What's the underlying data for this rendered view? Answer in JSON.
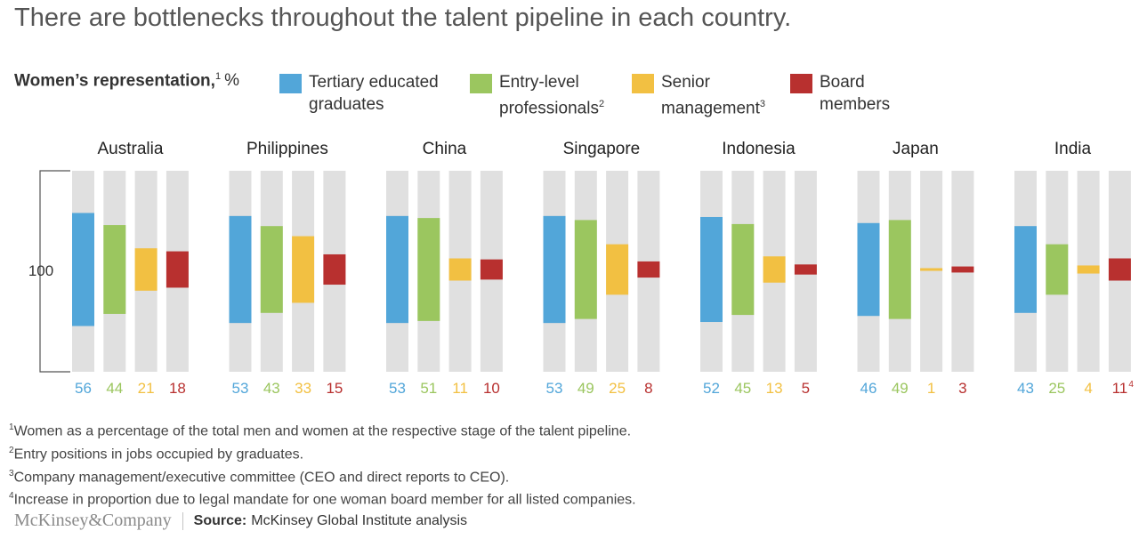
{
  "title": "There are bottlenecks throughout the talent pipeline in each country.",
  "rep_label": {
    "text": "Women’s representation,",
    "sup": "1",
    "unit": "%"
  },
  "legend": [
    {
      "line1": "Tertiary educated",
      "line2": "graduates",
      "sup": "",
      "color": "#52a6d9"
    },
    {
      "line1": "Entry-level",
      "line2": "professionals",
      "sup": "2",
      "color": "#9bc65f"
    },
    {
      "line1": "Senior",
      "line2": "management",
      "sup": "3",
      "color": "#f2c042"
    },
    {
      "line1": "Board",
      "line2": "members",
      "sup": "",
      "color": "#b8302f"
    }
  ],
  "scale_label": "100",
  "chart_data": {
    "type": "bar",
    "unit": "%",
    "series_names": [
      "Tertiary educated graduates",
      "Entry-level professionals",
      "Senior management",
      "Board members"
    ],
    "series_colors": [
      "#52a6d9",
      "#9bc65f",
      "#f2c042",
      "#b8302f"
    ],
    "groups": [
      {
        "country": "Australia",
        "values": [
          56,
          44,
          21,
          18
        ],
        "labels": [
          "56",
          "44",
          "21",
          "18"
        ]
      },
      {
        "country": "Philippines",
        "values": [
          53,
          43,
          33,
          15
        ],
        "labels": [
          "53",
          "43",
          "33",
          "15"
        ]
      },
      {
        "country": "China",
        "values": [
          53,
          51,
          11,
          10
        ],
        "labels": [
          "53",
          "51",
          "11",
          "10"
        ]
      },
      {
        "country": "Singapore",
        "values": [
          53,
          49,
          25,
          8
        ],
        "labels": [
          "53",
          "49",
          "25",
          "8"
        ]
      },
      {
        "country": "Indonesia",
        "values": [
          52,
          45,
          13,
          5
        ],
        "labels": [
          "52",
          "45",
          "13",
          "5"
        ]
      },
      {
        "country": "Japan",
        "values": [
          46,
          49,
          1,
          3
        ],
        "labels": [
          "46",
          "49",
          "1",
          "3"
        ]
      },
      {
        "country": "India",
        "values": [
          43,
          25,
          4,
          11
        ],
        "labels": [
          "43",
          "25",
          "4",
          "11"
        ],
        "board_sup": "4"
      }
    ],
    "ylim": [
      0,
      100
    ],
    "track_color": "#e0e0e0"
  },
  "footnotes": [
    {
      "sup": "1",
      "text": "Women as a percentage of the total men and women at the respective stage of the talent pipeline."
    },
    {
      "sup": "2",
      "text": "Entry positions in jobs occupied by graduates."
    },
    {
      "sup": "3",
      "text": "Company management/executive committee (CEO and direct reports to CEO)."
    },
    {
      "sup": "4",
      "text": "Increase in proportion due to legal mandate for one woman board member for all listed companies."
    }
  ],
  "footer": {
    "logo": "McKinsey&Company",
    "source_label": "Source:",
    "source_text": "McKinsey Global Institute analysis"
  }
}
